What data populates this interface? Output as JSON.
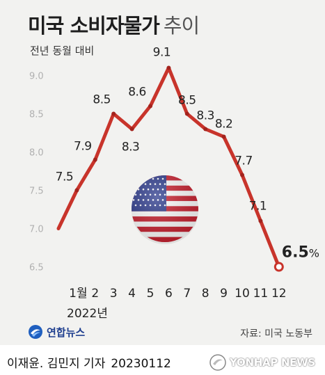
{
  "header": {
    "title": "미국 소비자물가",
    "title_suffix": "추이",
    "subtitle": "전년 동월 대비"
  },
  "chart_data": {
    "type": "line",
    "title": "미국 소비자물가 추이",
    "subtitle": "전년 동월 대비",
    "categories": [
      "",
      "1월",
      "2",
      "3",
      "4",
      "5",
      "6",
      "7",
      "8",
      "9",
      "10",
      "11",
      "12"
    ],
    "x_group_label": "2022년",
    "values": [
      7.0,
      7.5,
      7.9,
      8.5,
      8.3,
      8.6,
      9.1,
      8.5,
      8.3,
      8.2,
      7.7,
      7.1,
      6.5
    ],
    "data_labels": [
      "",
      "7.5",
      "7.9",
      "8.5",
      "8.3",
      "8.6",
      "9.1",
      "8.5",
      "8.3",
      "8.2",
      "7.7",
      "7.1",
      "6.5"
    ],
    "last_label_unit": "%",
    "yticks": [
      "6.5",
      "7.0",
      "7.5",
      "8.0",
      "8.5",
      "9.0"
    ],
    "ylim": [
      6.5,
      9.1
    ],
    "grid": false,
    "legend": "none",
    "line_color": "#c8342b",
    "marker_color": "#a3231d",
    "last_marker_fill": "#ffffff"
  },
  "footer": {
    "source": "자료: 미국 노동부",
    "logo_text": "연합뉴스",
    "logo_icon": "yonhap-logo-icon",
    "credit": "이재윤. 김민지 기자",
    "date": "20230112",
    "watermark": "YONHAP NEWS",
    "watermark_icon": "yonhap-watermark-icon"
  },
  "decoration": {
    "flag_icon": "us-flag-icon"
  }
}
